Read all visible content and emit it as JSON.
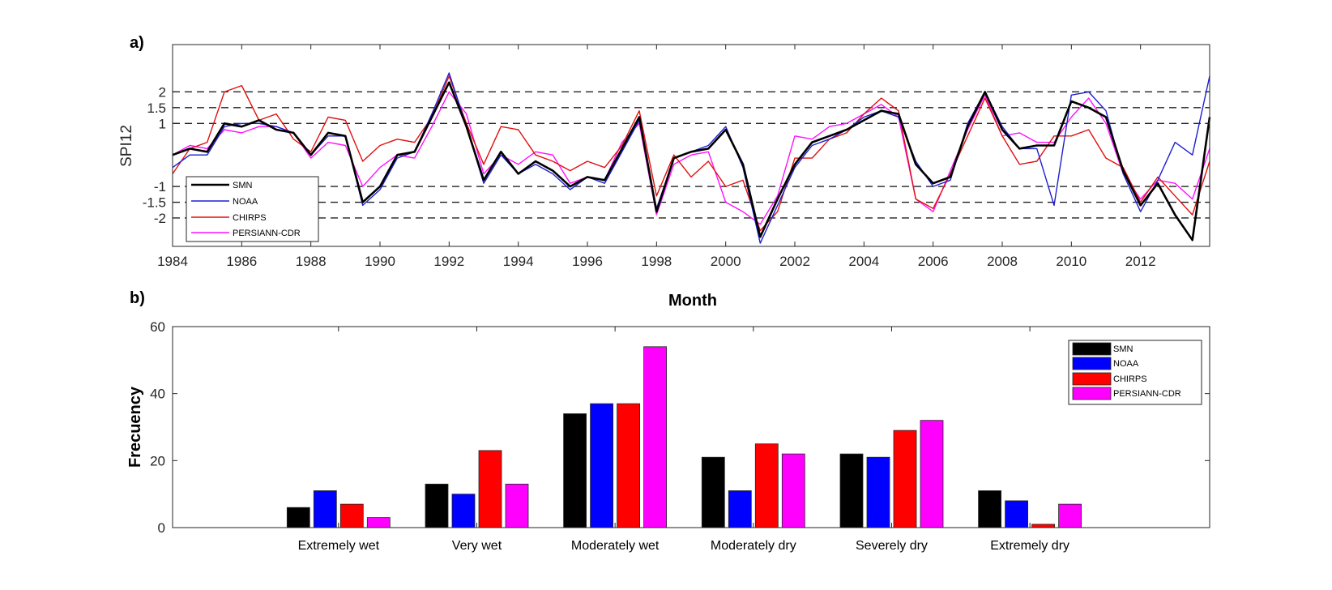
{
  "chart_data": [
    {
      "panel_label": "a)",
      "type": "line",
      "ylabel": "SPI12",
      "xlabel": "",
      "xlim": [
        1984,
        2014
      ],
      "ylim": [
        -2.9,
        3.5
      ],
      "x_ticks": [
        "1984",
        "1986",
        "1988",
        "1990",
        "1992",
        "1994",
        "1996",
        "1998",
        "2000",
        "2002",
        "2004",
        "2006",
        "2008",
        "2010",
        "2012"
      ],
      "y_ticks": [
        "-2",
        "-1.5",
        "-1",
        "1",
        "1.5",
        "2"
      ],
      "reference_lines": [
        -2,
        -1.5,
        -1,
        1,
        1.5,
        2
      ],
      "x_months": [
        1984.0,
        1984.5,
        1985.0,
        1985.5,
        1986.0,
        1986.5,
        1987.0,
        1987.5,
        1988.0,
        1988.5,
        1989.0,
        1989.5,
        1990.0,
        1990.5,
        1991.0,
        1991.5,
        1992.0,
        1992.5,
        1993.0,
        1993.5,
        1994.0,
        1994.5,
        1995.0,
        1995.5,
        1996.0,
        1996.5,
        1997.0,
        1997.5,
        1998.0,
        1998.5,
        1999.0,
        1999.5,
        2000.0,
        2000.5,
        2001.0,
        2001.5,
        2002.0,
        2002.5,
        2003.0,
        2003.5,
        2004.0,
        2004.5,
        2005.0,
        2005.5,
        2006.0,
        2006.5,
        2007.0,
        2007.5,
        2008.0,
        2008.5,
        2009.0,
        2009.5,
        2010.0,
        2010.5,
        2011.0,
        2011.5,
        2012.0,
        2012.5,
        2013.0,
        2013.5,
        2014.0
      ],
      "series": [
        {
          "name": "SMN",
          "color": "#000000",
          "width": 2.6,
          "values": [
            0.0,
            0.2,
            0.1,
            1.0,
            0.9,
            1.1,
            0.8,
            0.7,
            0.0,
            0.7,
            0.6,
            -1.5,
            -1.0,
            0.0,
            0.1,
            1.2,
            2.3,
            0.9,
            -0.8,
            0.1,
            -0.6,
            -0.2,
            -0.5,
            -1.0,
            -0.7,
            -0.8,
            0.2,
            1.2,
            -1.8,
            -0.1,
            0.1,
            0.2,
            0.8,
            -0.3,
            -2.6,
            -1.4,
            -0.3,
            0.4,
            0.6,
            0.8,
            1.1,
            1.4,
            1.3,
            -0.3,
            -0.9,
            -0.7,
            0.9,
            2.0,
            0.8,
            0.2,
            0.3,
            0.3,
            1.7,
            1.5,
            1.2,
            -0.5,
            -1.6,
            -0.9,
            -1.9,
            -2.7,
            1.2
          ]
        },
        {
          "name": "NOAA",
          "color": "#1f1fd0",
          "width": 1.4,
          "values": [
            -0.4,
            0.0,
            0.0,
            0.9,
            1.0,
            1.0,
            0.9,
            0.7,
            0.0,
            0.6,
            0.6,
            -1.6,
            -1.1,
            -0.1,
            0.1,
            1.3,
            2.6,
            0.9,
            -0.9,
            0.0,
            -0.6,
            -0.3,
            -0.6,
            -1.1,
            -0.7,
            -0.9,
            0.1,
            1.1,
            -1.7,
            -0.1,
            0.1,
            0.3,
            0.9,
            -0.4,
            -2.8,
            -1.6,
            -0.4,
            0.3,
            0.5,
            0.8,
            1.2,
            1.4,
            1.2,
            -0.2,
            -1.0,
            -0.8,
            1.0,
            2.0,
            0.9,
            0.2,
            0.2,
            -1.6,
            1.9,
            2.0,
            1.4,
            -0.6,
            -1.8,
            -0.8,
            0.4,
            0.0,
            2.5
          ]
        },
        {
          "name": "CHIRPS",
          "color": "#e01010",
          "width": 1.4,
          "values": [
            -0.6,
            0.2,
            0.4,
            2.0,
            2.2,
            1.1,
            1.3,
            0.5,
            0.1,
            1.2,
            1.1,
            -0.2,
            0.3,
            0.5,
            0.4,
            1.2,
            2.5,
            1.0,
            -0.3,
            0.9,
            0.8,
            0.0,
            -0.2,
            -0.5,
            -0.2,
            -0.4,
            0.3,
            1.4,
            -1.3,
            0.0,
            -0.7,
            -0.2,
            -1.0,
            -0.8,
            -2.4,
            -1.8,
            -0.1,
            -0.1,
            0.5,
            0.7,
            1.3,
            1.8,
            1.4,
            -1.4,
            -1.7,
            -0.6,
            0.6,
            1.8,
            0.6,
            -0.3,
            -0.2,
            0.6,
            0.6,
            0.8,
            -0.1,
            -0.4,
            -1.5,
            -0.7,
            -1.3,
            -1.9,
            -0.2
          ]
        },
        {
          "name": "PERSIANN-CDR",
          "color": "#ff10ff",
          "width": 1.4,
          "values": [
            0.0,
            0.3,
            0.2,
            0.8,
            0.7,
            0.9,
            0.9,
            0.7,
            -0.1,
            0.4,
            0.3,
            -1.0,
            -0.4,
            0.0,
            -0.1,
            0.9,
            2.0,
            1.3,
            -0.6,
            0.0,
            -0.3,
            0.1,
            0.0,
            -0.9,
            -0.7,
            -0.8,
            0.4,
            1.0,
            -1.9,
            -0.3,
            0.0,
            0.1,
            -1.5,
            -1.8,
            -2.2,
            -1.3,
            0.6,
            0.5,
            0.9,
            1.0,
            1.3,
            1.6,
            1.2,
            -1.4,
            -1.8,
            -0.5,
            0.8,
            1.9,
            0.6,
            0.7,
            0.4,
            0.4,
            1.2,
            1.8,
            1.0,
            -0.6,
            -1.4,
            -0.8,
            -0.9,
            -1.4,
            0.2
          ]
        }
      ],
      "legend": [
        "SMN",
        "NOAA",
        "CHIRPS",
        "PERSIANN-CDR"
      ],
      "legend_position": "bottom-left"
    },
    {
      "panel_label": "b)",
      "type": "bar",
      "title": "Month",
      "ylabel": "Frecuency",
      "xlabel": "",
      "ylim": [
        0,
        60
      ],
      "y_ticks": [
        "0",
        "20",
        "40",
        "60"
      ],
      "categories": [
        "Extremely wet",
        "Very wet",
        "Moderately wet",
        "Moderately dry",
        "Severely dry",
        "Extremely dry"
      ],
      "series": [
        {
          "name": "SMN",
          "color": "#000000",
          "values": [
            6,
            13,
            34,
            21,
            22,
            11
          ]
        },
        {
          "name": "NOAA",
          "color": "#0000ff",
          "values": [
            11,
            10,
            37,
            11,
            21,
            8
          ]
        },
        {
          "name": "CHIRPS",
          "color": "#ff0000",
          "values": [
            7,
            23,
            37,
            25,
            29,
            1
          ]
        },
        {
          "name": "PERSIANN-CDR",
          "color": "#ff00ff",
          "values": [
            3,
            13,
            54,
            22,
            32,
            7
          ]
        }
      ],
      "legend": [
        "SMN",
        "NOAA",
        "CHIRPS",
        "PERSIANN-CDR"
      ],
      "legend_position": "top-right"
    }
  ]
}
